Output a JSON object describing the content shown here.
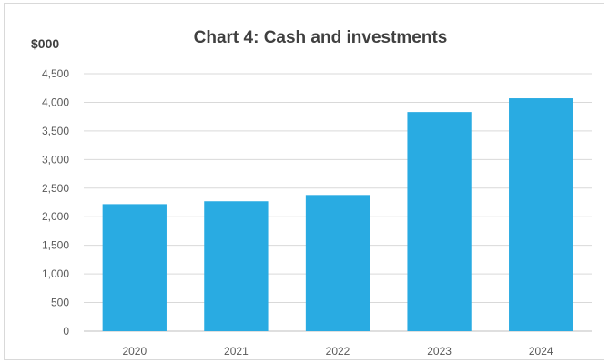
{
  "chart_data": {
    "type": "bar",
    "title": "Chart 4: Cash and investments",
    "ylabel": "$000",
    "xlabel": "",
    "categories": [
      "2020",
      "2021",
      "2022",
      "2023",
      "2024"
    ],
    "values": [
      2220,
      2270,
      2380,
      3830,
      4070
    ],
    "ylim": [
      0,
      4500
    ],
    "yticks": [
      0,
      500,
      1000,
      1500,
      2000,
      2500,
      3000,
      3500,
      4000,
      4500
    ],
    "ytick_labels": [
      "0",
      "500",
      "1,000",
      "1,500",
      "2,000",
      "2,500",
      "3,000",
      "3,500",
      "4,000",
      "4,500"
    ],
    "grid": true,
    "legend": "none",
    "bar_color": "#29abe2"
  }
}
